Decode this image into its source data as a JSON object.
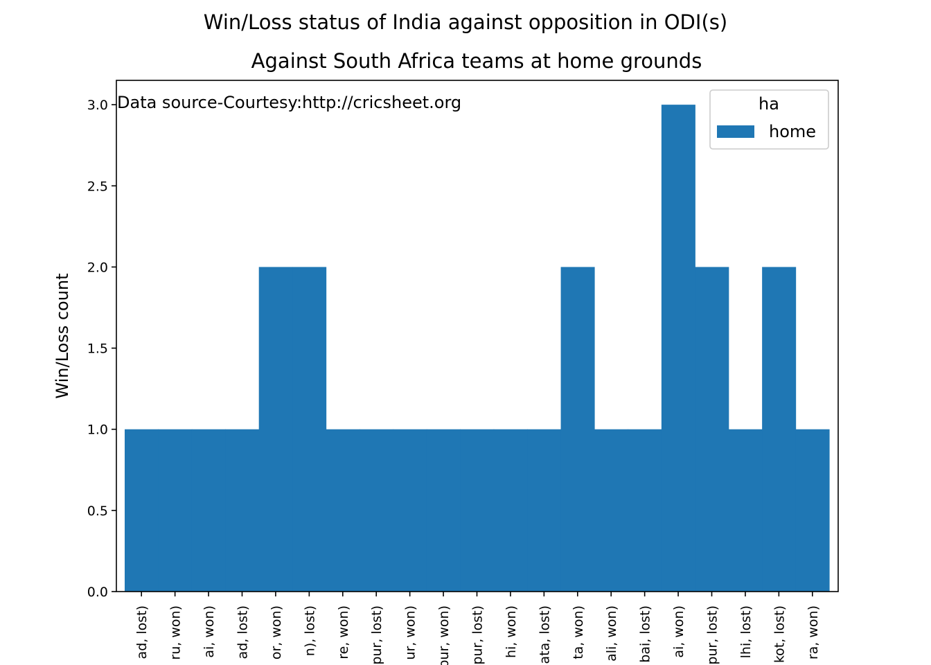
{
  "chart_data": {
    "type": "bar",
    "title": "Win/Loss status of India against opposition in ODI(s)",
    "subtitle": "Against South Africa teams at home grounds",
    "xlabel": "",
    "ylabel": "Win/Loss count",
    "ylim": [
      0,
      3.15
    ],
    "yticks": [
      "0.0",
      "0.5",
      "1.0",
      "1.5",
      "2.0",
      "2.5",
      "3.0"
    ],
    "ytick_values": [
      0,
      0.5,
      1.0,
      1.5,
      2.0,
      2.5,
      3.0
    ],
    "categories": [
      "ad, lost)",
      "ru, won)",
      "ai, won)",
      "ad, lost)",
      "or, won)",
      "n), lost)",
      "re, won)",
      "pur, lost)",
      "ur, won)",
      "pur, won)",
      "pur, lost)",
      "hi, won)",
      "ata, lost)",
      "ta, won)",
      "ali, won)",
      "bai, lost)",
      "ai, won)",
      "pur, lost)",
      "lhi, lost)",
      "kot, lost)",
      "ra, won)"
    ],
    "series": [
      {
        "name": "home",
        "values": [
          1,
          1,
          1,
          1,
          2,
          2,
          1,
          1,
          1,
          1,
          1,
          1,
          1,
          2,
          1,
          1,
          3,
          2,
          1,
          2,
          1
        ],
        "color": "#1f77b4"
      }
    ],
    "legend": {
      "title": "ha",
      "placement": "top-right"
    },
    "annotation": "Data source-Courtesy:http://cricsheet.org",
    "grid": false
  }
}
